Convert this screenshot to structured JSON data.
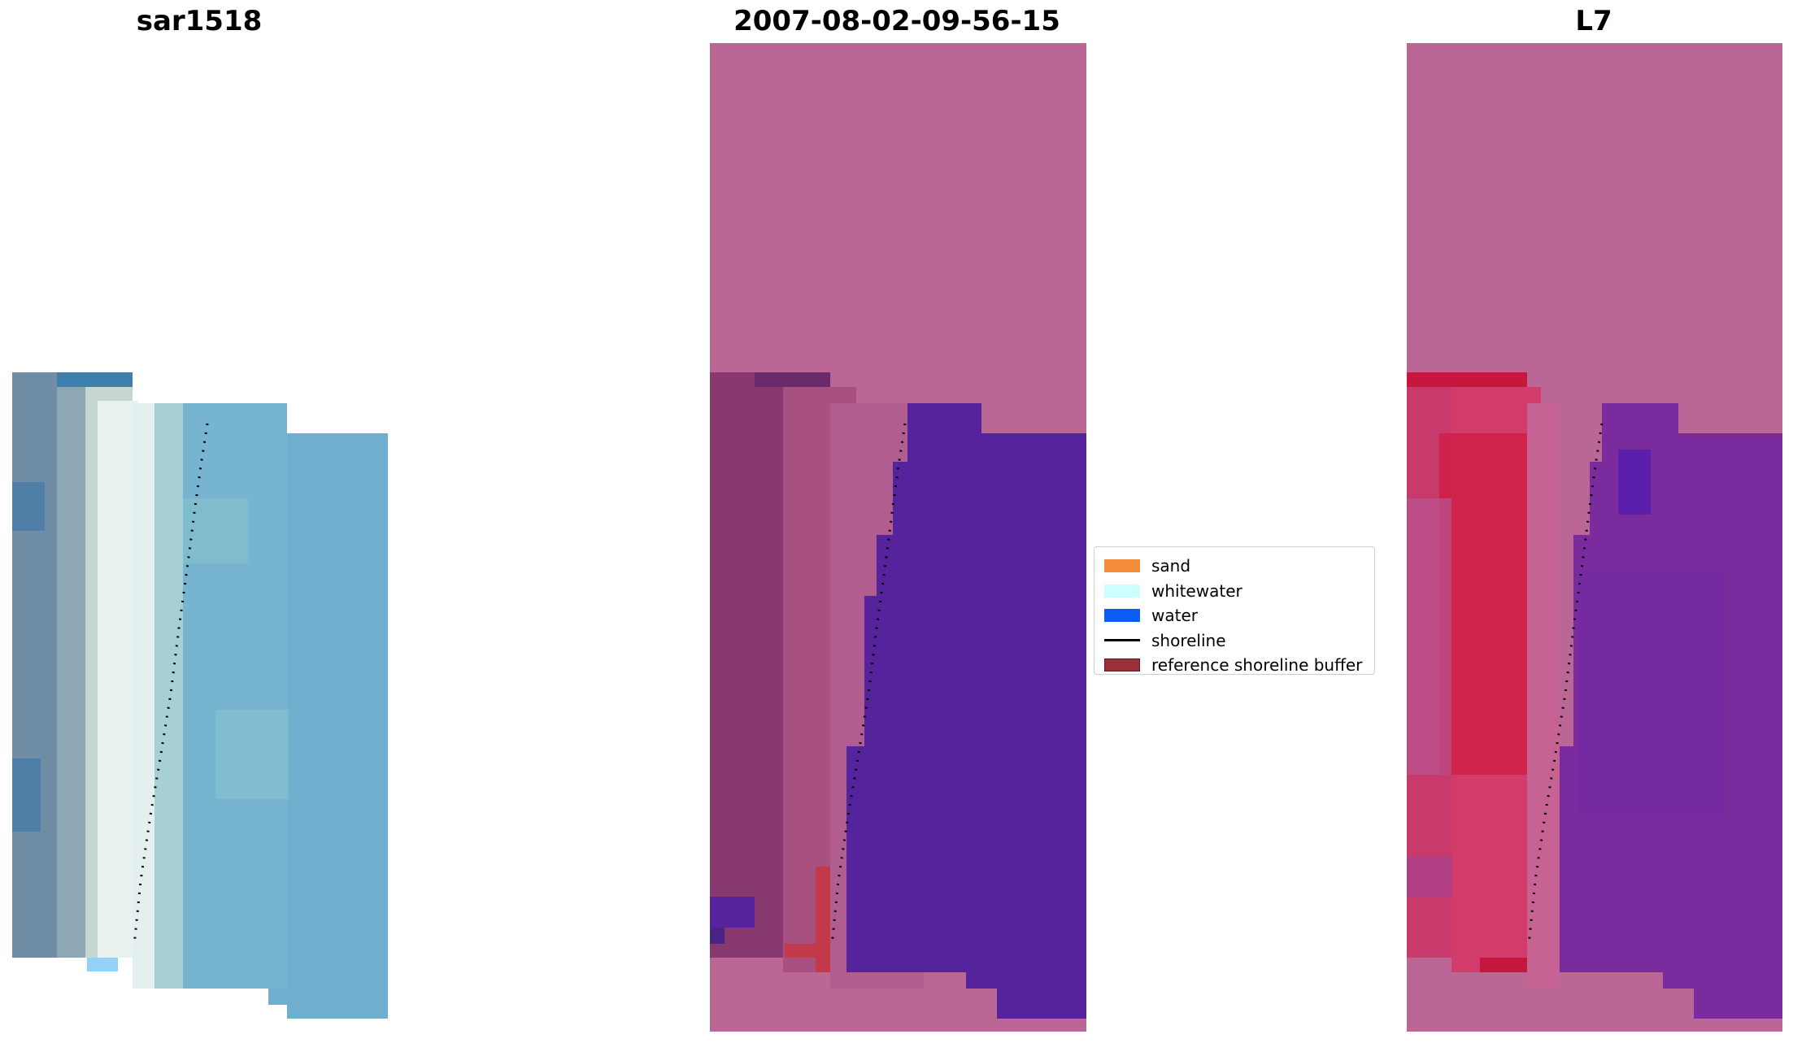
{
  "panels": {
    "left_title": "sar1518",
    "middle_title": "2007-08-02-09-56-15",
    "right_title": "L7"
  },
  "legend": {
    "items": [
      {
        "label": "sand",
        "color": "#f28c3a"
      },
      {
        "label": "whitewater",
        "color": "#ccffff"
      },
      {
        "label": "water",
        "color": "#0a5cf5"
      },
      {
        "label": "shoreline",
        "color": "#000000"
      },
      {
        "label": "reference shoreline buffer",
        "color": "#99303a"
      }
    ]
  },
  "colors": {
    "nodata_mask": "#bb6796",
    "water_class": "#55239b",
    "buffer": "#c23a4a",
    "rgb_water": "#74b2cf",
    "rgb_land": "#6f8ea5"
  }
}
